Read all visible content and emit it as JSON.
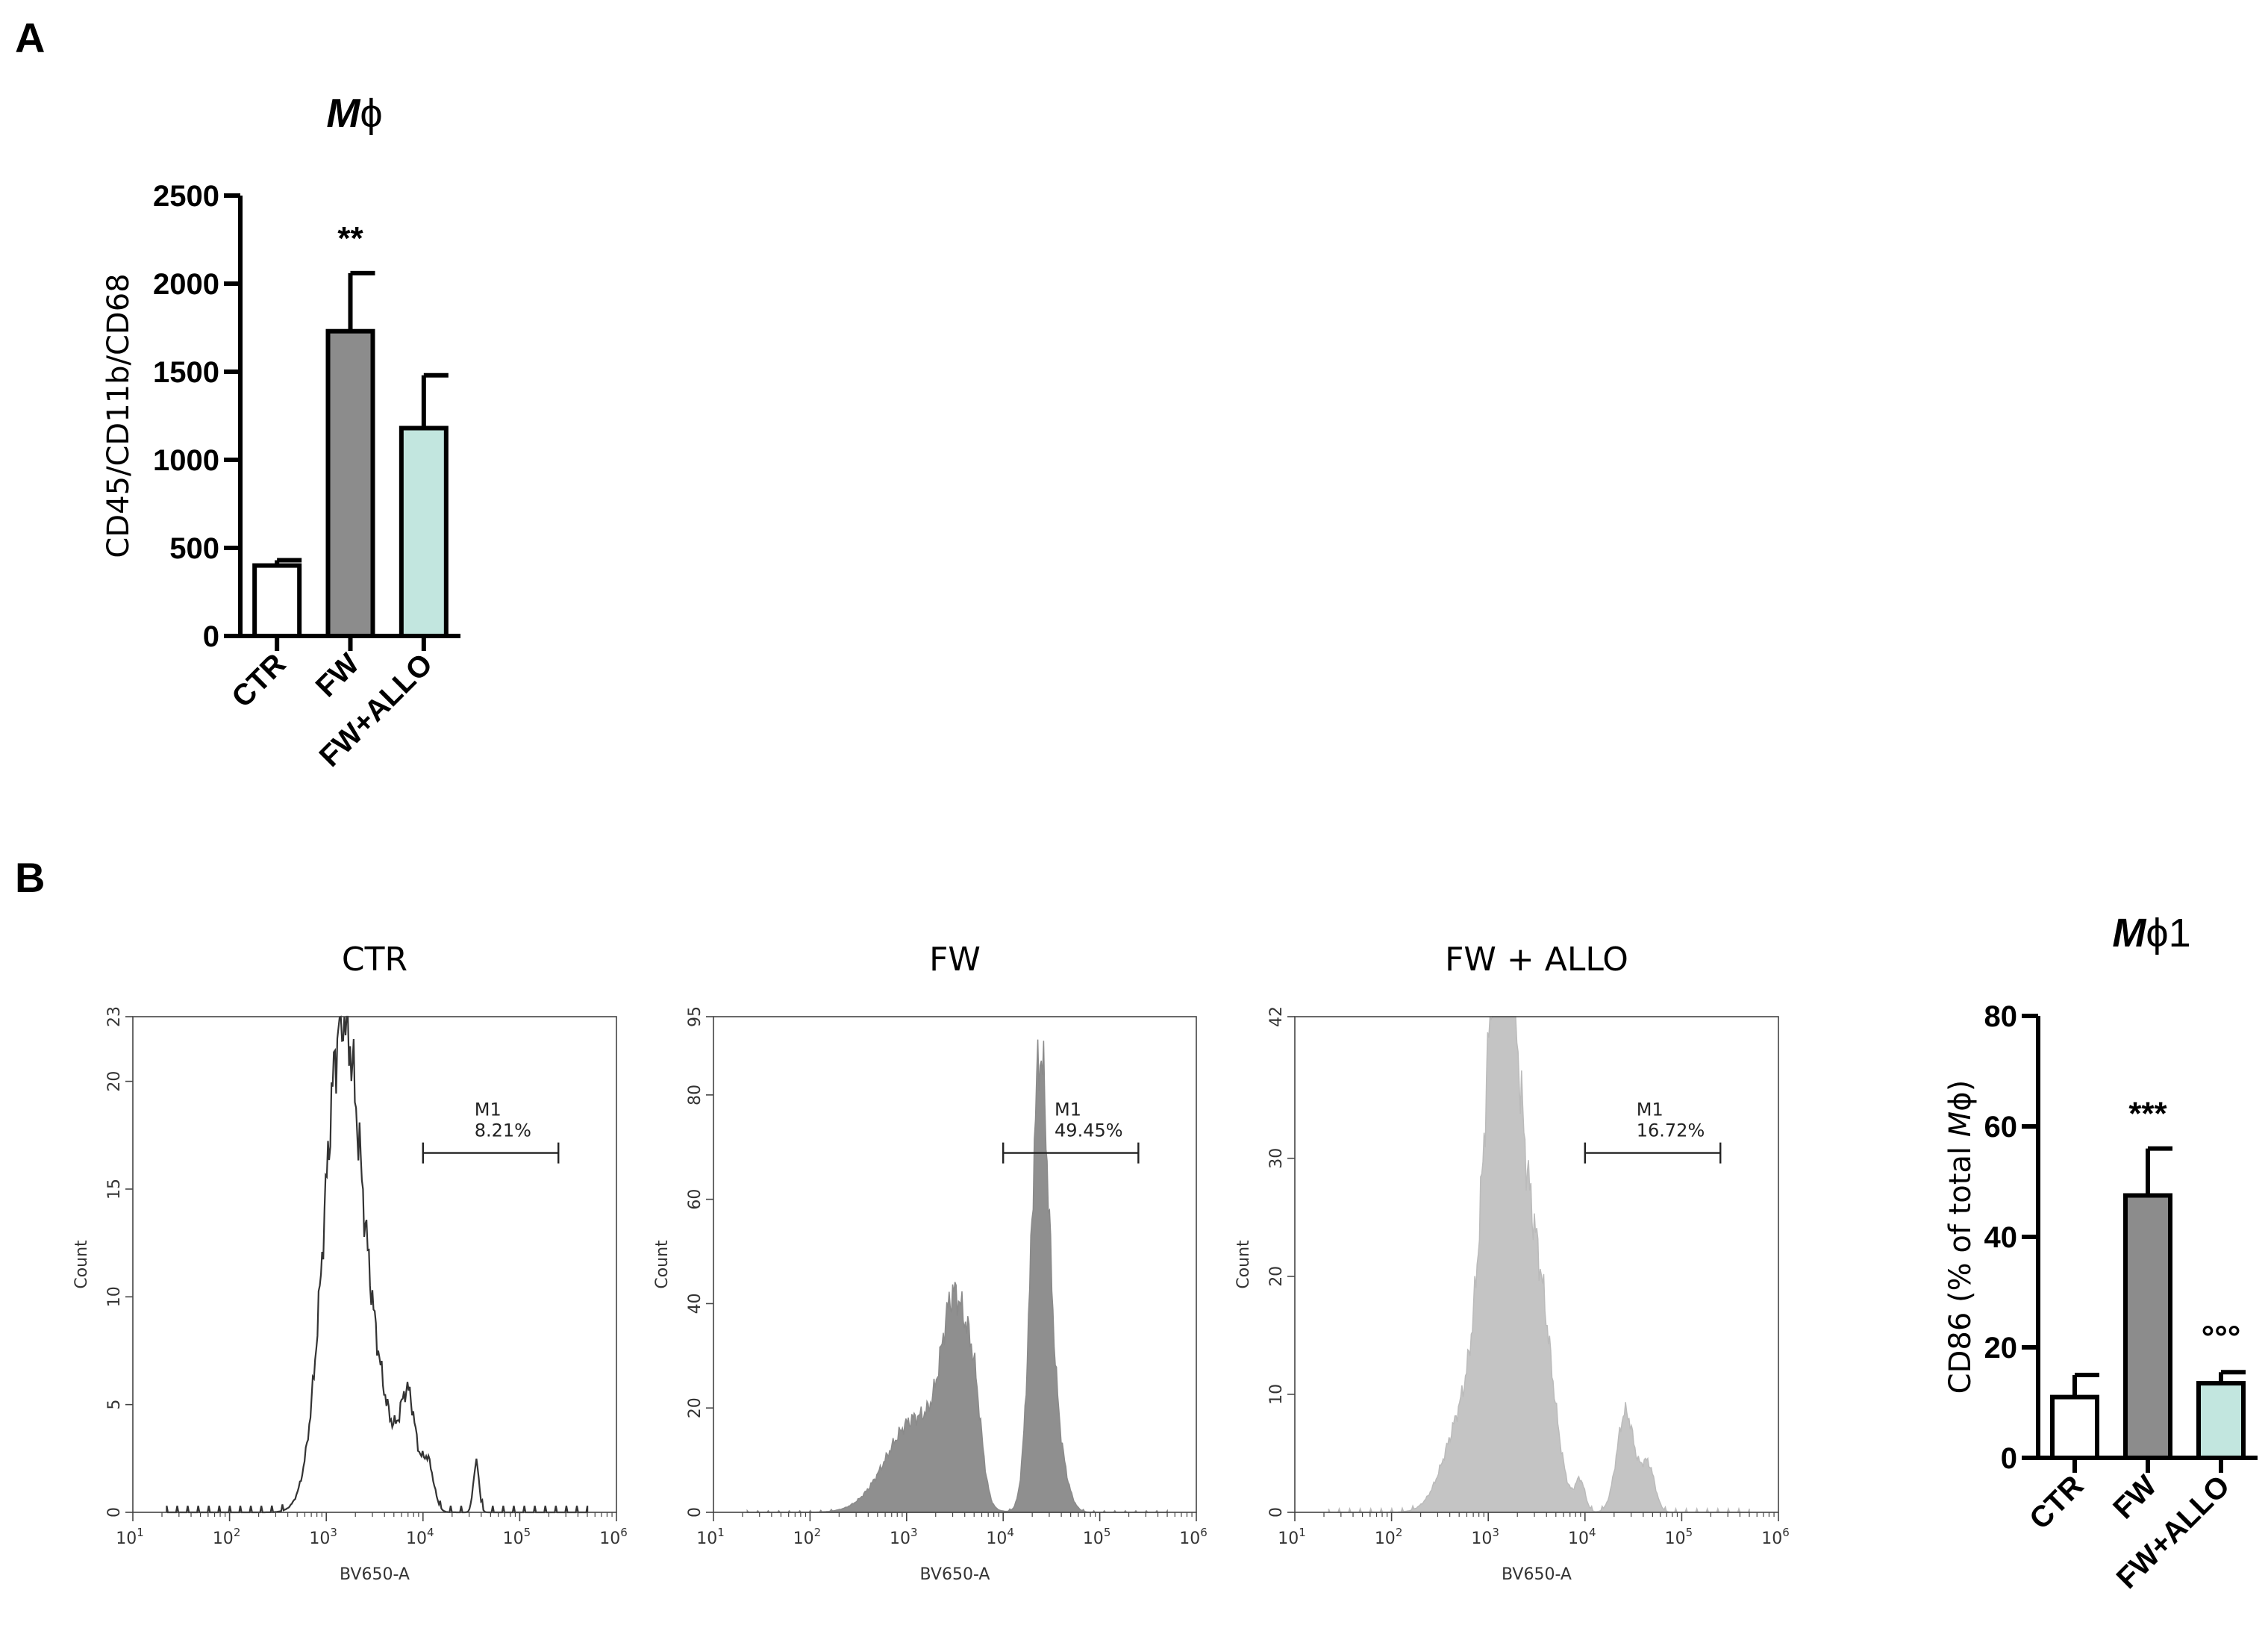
{
  "panels": {
    "a_letter": "A",
    "b_letter": "B"
  },
  "chart_data": [
    {
      "id": "panelA-bar",
      "type": "bar",
      "title_main": "M",
      "title_sub": "ϕ",
      "categories": [
        "CTR",
        "FW",
        "FW+ALLO"
      ],
      "values": [
        400,
        1730,
        1180
      ],
      "errors": [
        30,
        330,
        300
      ],
      "significance": [
        "",
        "**",
        ""
      ],
      "colors": [
        "#ffffff",
        "#8c8c8c",
        "#c2e6df"
      ],
      "ylabel": "CD45/CD11b/CD68",
      "ylim": [
        0,
        2500
      ],
      "yticks": [
        0,
        500,
        1000,
        1500,
        2000,
        2500
      ]
    },
    {
      "id": "panelB-bar",
      "type": "bar",
      "title_main": "M",
      "title_sub": "ϕ1",
      "categories": [
        "CTR",
        "FW",
        "FW+ALLO"
      ],
      "values": [
        11,
        47.5,
        13.5
      ],
      "errors": [
        4,
        8.5,
        2
      ],
      "significance": [
        "",
        "***",
        "°°°"
      ],
      "colors": [
        "#ffffff",
        "#8c8c8c",
        "#c2e6df"
      ],
      "ylabel_prefix": "CD86 (% of total ",
      "ylabel_italic": "M",
      "ylabel_suffix": "ϕ)",
      "ylim": [
        0,
        80
      ],
      "yticks": [
        0,
        20,
        40,
        60,
        80
      ]
    },
    {
      "id": "hist-ctr",
      "type": "histogram",
      "title": "CTR",
      "xlabel": "BV650-A",
      "ylabel": "Count",
      "xscale": "log",
      "xlim_exp": [
        1,
        6
      ],
      "ylim": [
        0,
        23
      ],
      "yticks": [
        0,
        5,
        10,
        15,
        20,
        23
      ],
      "style": "outline",
      "stroke": "#333333",
      "fill": "none",
      "gate_label": "M1",
      "gate_percent": "8.21%",
      "gate_range_log": [
        4.0,
        5.4
      ],
      "peaks": [
        {
          "x_log": 3.15,
          "height": 20.5,
          "width": 0.18
        },
        {
          "x_log": 3.45,
          "height": 6,
          "width": 0.22
        },
        {
          "x_log": 3.85,
          "height": 4.5,
          "width": 0.08
        },
        {
          "x_log": 4.05,
          "height": 2.2,
          "width": 0.06
        },
        {
          "x_log": 4.55,
          "height": 2.3,
          "width": 0.03
        }
      ]
    },
    {
      "id": "hist-fw",
      "type": "histogram",
      "title": "FW",
      "xlabel": "BV650-A",
      "ylabel": "Count",
      "xscale": "log",
      "xlim_exp": [
        1,
        6
      ],
      "ylim": [
        0,
        95
      ],
      "yticks": [
        0,
        20,
        40,
        60,
        80,
        95
      ],
      "style": "filled",
      "stroke": "#8a8a8a",
      "fill": "#8f8f8f",
      "gate_label": "M1",
      "gate_percent": "49.45%",
      "gate_range_log": [
        4.0,
        5.4
      ],
      "peaks": [
        {
          "x_log": 3.5,
          "height": 34,
          "width": 0.13
        },
        {
          "x_log": 3.1,
          "height": 18,
          "width": 0.3
        },
        {
          "x_log": 3.7,
          "height": 16,
          "width": 0.08
        },
        {
          "x_log": 4.38,
          "height": 85,
          "width": 0.09
        },
        {
          "x_log": 4.55,
          "height": 12,
          "width": 0.1
        }
      ]
    },
    {
      "id": "hist-fwallo",
      "type": "histogram",
      "title": "FW + ALLO",
      "xlabel": "BV650-A",
      "ylabel": "Count",
      "xscale": "log",
      "xlim_exp": [
        1,
        6
      ],
      "ylim": [
        0,
        42
      ],
      "yticks": [
        0,
        10,
        20,
        30,
        42
      ],
      "style": "filled",
      "stroke": "#bbbbbb",
      "fill": "#c4c4c4",
      "gate_label": "M1",
      "gate_percent": "16.72%",
      "gate_range_log": [
        4.0,
        5.4
      ],
      "peaks": [
        {
          "x_log": 3.12,
          "height": 37,
          "width": 0.15
        },
        {
          "x_log": 3.28,
          "height": 20,
          "width": 0.22
        },
        {
          "x_log": 3.55,
          "height": 10,
          "width": 0.14
        },
        {
          "x_log": 2.75,
          "height": 8,
          "width": 0.2
        },
        {
          "x_log": 4.42,
          "height": 8.5,
          "width": 0.09
        },
        {
          "x_log": 4.65,
          "height": 4,
          "width": 0.07
        },
        {
          "x_log": 3.95,
          "height": 2.5,
          "width": 0.05
        }
      ]
    }
  ]
}
